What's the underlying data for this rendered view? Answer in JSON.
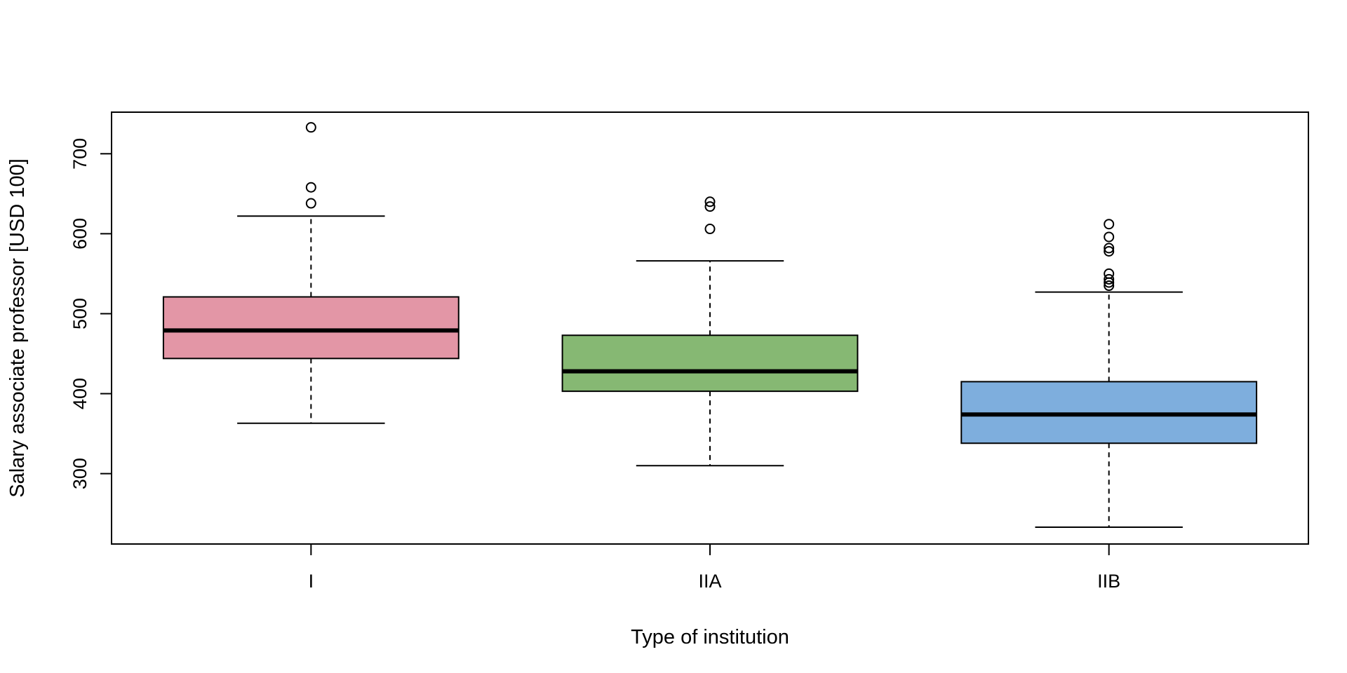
{
  "chart_data": {
    "type": "boxplot",
    "title": "",
    "xlabel": "Type of institution",
    "ylabel": "Salary associate professor [USD 100]",
    "categories": [
      "I",
      "IIA",
      "IIB"
    ],
    "colors": [
      "#e396a6",
      "#86b873",
      "#7eaedd"
    ],
    "ylim": [
      212,
      752
    ],
    "yticks": [
      300,
      400,
      500,
      600,
      700
    ],
    "grid": false,
    "boxes": [
      {
        "category": "I",
        "whisker_low": 363,
        "q1": 444,
        "median": 479,
        "q3": 521,
        "whisker_high": 622,
        "outliers": [
          638,
          658,
          733
        ]
      },
      {
        "category": "IIA",
        "whisker_low": 310,
        "q1": 403,
        "median": 428,
        "q3": 473,
        "whisker_high": 566,
        "outliers": [
          606,
          634,
          640
        ]
      },
      {
        "category": "IIB",
        "whisker_low": 233,
        "q1": 338,
        "median": 374,
        "q3": 415,
        "whisker_high": 527,
        "outliers": [
          535,
          539,
          543,
          550,
          578,
          582,
          596,
          612
        ]
      }
    ]
  }
}
